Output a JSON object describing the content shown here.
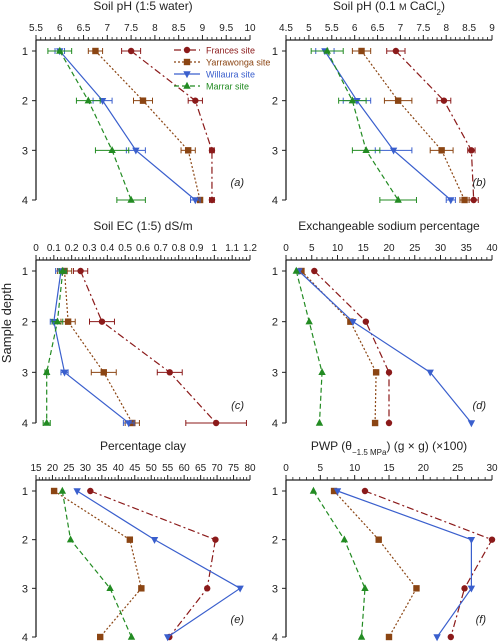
{
  "y_axis_label": "Sample depth",
  "legend": [
    {
      "name": "Frances site",
      "color": "#8b1a1a",
      "marker": "circle",
      "dash": "7,3,2,3"
    },
    {
      "name": "Yarrawonga site",
      "color": "#8b4513",
      "marker": "square",
      "dash": "2,2"
    },
    {
      "name": "Willaura site",
      "color": "#3a5fcd",
      "marker": "triangle-down",
      "dash": ""
    },
    {
      "name": "Marrar site",
      "color": "#228b22",
      "marker": "triangle-up",
      "dash": "5,3"
    }
  ],
  "chart_data": [
    {
      "type": "line",
      "panel_label": "(a)",
      "title": "Soil pH (1:5 water)",
      "title_parts": [
        "Soil pH (1:5 water)"
      ],
      "xlim": [
        5.5,
        10
      ],
      "xticks": [
        5.5,
        6,
        6.5,
        7,
        7.5,
        8,
        8.5,
        9,
        9.5,
        10
      ],
      "ylim": [
        1,
        4
      ],
      "yticks": [
        1,
        2,
        3,
        4
      ],
      "series": [
        {
          "name": "Frances site",
          "points": [
            [
              7.5,
              1
            ],
            [
              8.85,
              2
            ],
            [
              9.2,
              3
            ],
            [
              9.2,
              4
            ]
          ],
          "err": [
            0.2,
            0.15,
            0.05,
            0.05
          ]
        },
        {
          "name": "Yarrawonga site",
          "points": [
            [
              6.75,
              1
            ],
            [
              7.75,
              2
            ],
            [
              8.7,
              3
            ],
            [
              8.95,
              4
            ]
          ],
          "err": [
            0.15,
            0.2,
            0.15,
            0.05
          ]
        },
        {
          "name": "Willaura site",
          "points": [
            [
              6.0,
              1
            ],
            [
              6.9,
              2
            ],
            [
              7.6,
              3
            ],
            [
              8.85,
              4
            ]
          ],
          "err": [
            0.1,
            0.2,
            0.2,
            0.1
          ]
        },
        {
          "name": "Marrar site",
          "points": [
            [
              6.0,
              1
            ],
            [
              6.6,
              2
            ],
            [
              7.1,
              3
            ],
            [
              7.5,
              4
            ]
          ],
          "err": [
            0.25,
            0.25,
            0.35,
            0.3
          ]
        }
      ]
    },
    {
      "type": "line",
      "panel_label": "(b)",
      "title": "Soil pH (0.1 M CaCl2)",
      "title_parts": [
        "Soil pH (0.1 ",
        "M",
        " CaCl",
        "2",
        ")"
      ],
      "xlim": [
        4.5,
        9
      ],
      "xticks": [
        4.5,
        5,
        5.5,
        6,
        6.5,
        7,
        7.5,
        8,
        8.5,
        9
      ],
      "ylim": [
        1,
        4
      ],
      "yticks": [
        1,
        2,
        3,
        4
      ],
      "series": [
        {
          "name": "Frances site",
          "points": [
            [
              6.9,
              1
            ],
            [
              7.95,
              2
            ],
            [
              8.55,
              3
            ],
            [
              8.6,
              4
            ]
          ],
          "err": [
            0.2,
            0.15,
            0.08,
            0.1
          ]
        },
        {
          "name": "Yarrawonga site",
          "points": [
            [
              6.15,
              1
            ],
            [
              6.95,
              2
            ],
            [
              7.9,
              3
            ],
            [
              8.4,
              4
            ]
          ],
          "err": [
            0.2,
            0.3,
            0.25,
            0.1
          ]
        },
        {
          "name": "Willaura site",
          "points": [
            [
              5.35,
              1
            ],
            [
              6.05,
              2
            ],
            [
              6.85,
              3
            ],
            [
              8.1,
              4
            ]
          ],
          "err": [
            0.2,
            0.3,
            0.4,
            0.1
          ]
        },
        {
          "name": "Marrar site",
          "points": [
            [
              5.4,
              1
            ],
            [
              5.95,
              2
            ],
            [
              6.25,
              3
            ],
            [
              6.95,
              4
            ]
          ],
          "err": [
            0.35,
            0.3,
            0.3,
            0.4
          ]
        }
      ]
    },
    {
      "type": "line",
      "panel_label": "(c)",
      "title": "Soil EC (1:5) dS/m",
      "title_parts": [
        "Soil EC (1:5) dS/m"
      ],
      "xlim": [
        0,
        1.2
      ],
      "xticks": [
        0,
        0.1,
        0.2,
        0.3,
        0.4,
        0.5,
        0.6,
        0.7,
        0.8,
        0.9,
        1.0,
        1.1,
        1.2
      ],
      "ylim": [
        1,
        4
      ],
      "yticks": [
        1,
        2,
        3,
        4
      ],
      "series": [
        {
          "name": "Frances site",
          "points": [
            [
              0.25,
              1
            ],
            [
              0.37,
              2
            ],
            [
              0.75,
              3
            ],
            [
              1.01,
              4
            ]
          ],
          "err": [
            0.04,
            0.07,
            0.07,
            0.17
          ]
        },
        {
          "name": "Yarrawonga site",
          "points": [
            [
              0.16,
              1
            ],
            [
              0.18,
              2
            ],
            [
              0.38,
              3
            ],
            [
              0.54,
              4
            ]
          ],
          "err": [
            0.04,
            0.04,
            0.07,
            0.04
          ]
        },
        {
          "name": "Willaura site",
          "points": [
            [
              0.14,
              1
            ],
            [
              0.1,
              2
            ],
            [
              0.16,
              3
            ],
            [
              0.52,
              4
            ]
          ],
          "err": [
            0.03,
            0.02,
            0.02,
            0.03
          ]
        },
        {
          "name": "Marrar site",
          "points": [
            [
              0.15,
              1
            ],
            [
              0.12,
              2
            ],
            [
              0.06,
              3
            ],
            [
              0.06,
              4
            ]
          ],
          "err": [
            0.02,
            0.03,
            0.01,
            0.02
          ]
        }
      ]
    },
    {
      "type": "line",
      "panel_label": "(d)",
      "title": "Exchangeable sodium percentage",
      "title_parts": [
        "Exchangeable sodium percentage"
      ],
      "xlim": [
        0,
        40
      ],
      "xticks": [
        0,
        5,
        10,
        15,
        20,
        25,
        30,
        35,
        40
      ],
      "ylim": [
        1,
        4
      ],
      "yticks": [
        1,
        2,
        3,
        4
      ],
      "series": [
        {
          "name": "Frances site",
          "points": [
            [
              5.5,
              1
            ],
            [
              15.5,
              2
            ],
            [
              20,
              3
            ],
            [
              20,
              4
            ]
          ]
        },
        {
          "name": "Yarrawonga site",
          "points": [
            [
              3,
              1
            ],
            [
              12.5,
              2
            ],
            [
              17.5,
              3
            ],
            [
              17.3,
              4
            ]
          ]
        },
        {
          "name": "Willaura site",
          "points": [
            [
              2.5,
              1
            ],
            [
              13,
              2
            ],
            [
              28,
              3
            ],
            [
              36,
              4
            ]
          ]
        },
        {
          "name": "Marrar site",
          "points": [
            [
              2,
              1
            ],
            [
              4.5,
              2
            ],
            [
              7,
              3
            ],
            [
              6.5,
              4
            ]
          ]
        }
      ]
    },
    {
      "type": "line",
      "panel_label": "(e)",
      "title": "Percentage clay",
      "title_parts": [
        "Percentage clay"
      ],
      "xlim": [
        15,
        80
      ],
      "xticks": [
        15,
        20,
        25,
        30,
        35,
        40,
        45,
        50,
        55,
        60,
        65,
        70,
        75,
        80
      ],
      "ylim": [
        1,
        4
      ],
      "yticks": [
        1,
        2,
        3,
        4
      ],
      "series": [
        {
          "name": "Frances site",
          "points": [
            [
              31.5,
              1
            ],
            [
              69.5,
              2
            ],
            [
              67,
              3
            ],
            [
              55.5,
              4
            ]
          ]
        },
        {
          "name": "Yarrawonga site",
          "points": [
            [
              20.5,
              1
            ],
            [
              43.5,
              2
            ],
            [
              47,
              3
            ],
            [
              34.5,
              4
            ]
          ]
        },
        {
          "name": "Willaura site",
          "points": [
            [
              27.5,
              1
            ],
            [
              51,
              2
            ],
            [
              77,
              3
            ],
            [
              55,
              4
            ]
          ]
        },
        {
          "name": "Marrar site",
          "points": [
            [
              23,
              1
            ],
            [
              25.5,
              2
            ],
            [
              37.5,
              3
            ],
            [
              44,
              4
            ]
          ]
        }
      ]
    },
    {
      "type": "line",
      "panel_label": "(f)",
      "title": "PWP (θ−1.5 MPa) (g × g) (×100)",
      "title_parts": [
        "PWP (θ",
        "−1.5 MPa",
        ") (g × g) (×100)"
      ],
      "xlim": [
        0,
        30
      ],
      "xticks": [
        0,
        5,
        10,
        15,
        20,
        25,
        30
      ],
      "ylim": [
        1,
        4
      ],
      "yticks": [
        1,
        2,
        3,
        4
      ],
      "series": [
        {
          "name": "Frances site",
          "points": [
            [
              11.5,
              1
            ],
            [
              30,
              2
            ],
            [
              26,
              3
            ],
            [
              24,
              4
            ]
          ]
        },
        {
          "name": "Yarrawonga site",
          "points": [
            [
              7,
              1
            ],
            [
              13.5,
              2
            ],
            [
              19,
              3
            ],
            [
              15,
              4
            ]
          ]
        },
        {
          "name": "Willaura site",
          "points": [
            [
              7.5,
              1
            ],
            [
              27,
              2
            ],
            [
              27,
              3
            ],
            [
              22,
              4
            ]
          ]
        },
        {
          "name": "Marrar site",
          "points": [
            [
              4,
              1
            ],
            [
              8.5,
              2
            ],
            [
              11.5,
              3
            ],
            [
              11,
              4
            ]
          ]
        }
      ]
    }
  ]
}
